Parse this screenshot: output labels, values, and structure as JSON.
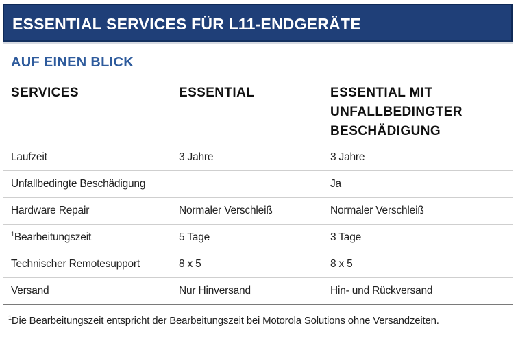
{
  "title": "ESSENTIAL SERVICES FÜR L11-ENDGERÄTE",
  "subtitle": "AUF EINEN BLICK",
  "colors": {
    "title_bar": "#1f3f78",
    "subtitle": "#2e5b9c"
  },
  "table": {
    "headers": {
      "services": "SERVICES",
      "essential": "ESSENTIAL",
      "essential_plus": "ESSENTIAL MIT UNFALLBEDINGTER BESCHÄDIGUNG"
    },
    "rows": [
      {
        "service": "Laufzeit",
        "essential": "3 Jahre",
        "essential_plus": "3 Jahre"
      },
      {
        "service": "Unfallbedingte Beschädigung",
        "essential": "",
        "essential_plus": "Ja"
      },
      {
        "service": "Hardware Repair",
        "essential": "Normaler Verschleiß",
        "essential_plus": "Normaler Verschleiß"
      },
      {
        "service_sup": "1",
        "service": "Bearbeitungszeit",
        "essential": "5 Tage",
        "essential_plus": "3 Tage"
      },
      {
        "service": "Technischer Remotesupport",
        "essential": "8 x 5",
        "essential_plus": "8 x 5"
      },
      {
        "service": "Versand",
        "essential": "Nur Hinversand",
        "essential_plus": "Hin- und Rückversand"
      }
    ]
  },
  "footnote": {
    "marker": "1",
    "text": "Die Bearbeitungszeit entspricht der Bearbeitungszeit bei Motorola Solutions ohne Versandzeiten."
  }
}
